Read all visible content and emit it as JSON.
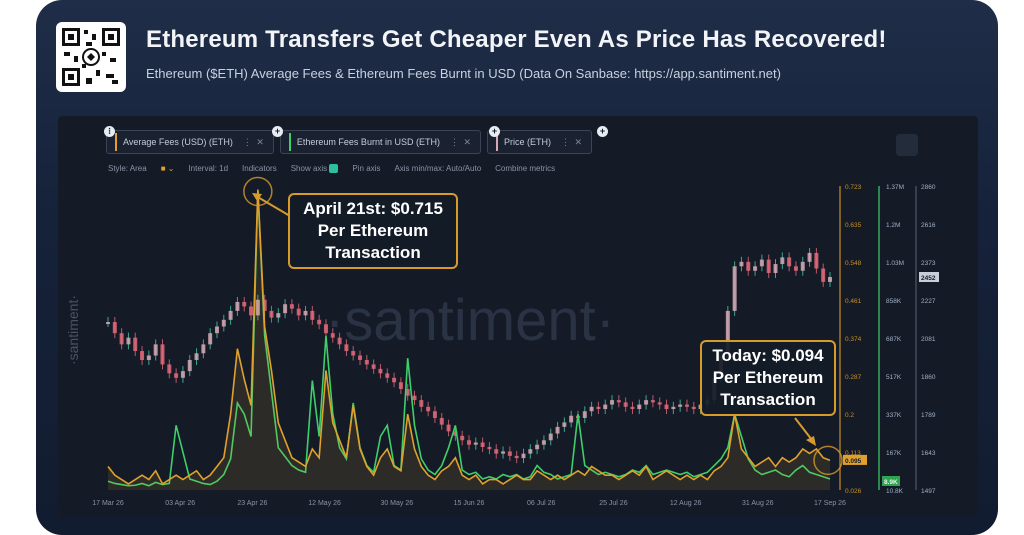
{
  "header": {
    "title": "Ethereum Transfers Get Cheaper Even As Price Has Recovered!",
    "subtitle": "Ethereum ($ETH) Average Fees & Ethereum Fees Burnt in USD (Data On Sanbase: https://app.santiment.net)"
  },
  "toolbar": {
    "metric1": "Average Fees (USD) (ETH)",
    "metric2": "Ethereum Fees Burnt in USD (ETH)",
    "metric3": "Price (ETH)",
    "style": "Style: Area",
    "interval": "Interval: 1d",
    "indicators": "Indicators",
    "show_axis": "Show axis",
    "pin_axis": "Pin axis",
    "axis_minmax": "Axis min/max: Auto/Auto",
    "combine": "Combine metrics"
  },
  "watermark": "·santiment·",
  "side_brand": "·santiment·",
  "callouts": {
    "peak": "April 21st: $0.715\nPer Ethereum\nTransaction",
    "today": "Today: $0.094\nPer Ethereum\nTransaction"
  },
  "colors": {
    "fees": "#e0a12c",
    "burnt": "#3ecf6a",
    "price": "#d7a9b4",
    "price_down": "#e36a7a",
    "price_up": "#49c9a8"
  },
  "chart_data": {
    "type": "line",
    "x_ticks": [
      "17 Mar 26",
      "03 Apr 26",
      "23 Apr 26",
      "12 May 26",
      "30 May 26",
      "15 Jun 26",
      "06 Jul 26",
      "25 Jul 26",
      "12 Aug 26",
      "31 Aug 26",
      "17 Sep 26"
    ],
    "axes": {
      "fees": {
        "ticks": [
          "0.723",
          "0.635",
          "0.548",
          "0.461",
          "0.374",
          "0.287",
          "0.2",
          "0.113",
          "0.026"
        ],
        "current": "0.095"
      },
      "burnt": {
        "ticks": [
          "1.37M",
          "1.2M",
          "1.03M",
          "858K",
          "687K",
          "517K",
          "337K",
          "167K",
          "10.8K"
        ],
        "current": "8.9K"
      },
      "price": {
        "ticks": [
          "2860",
          "2616",
          "2373",
          "2227",
          "2081",
          "1860",
          "1789",
          "1643",
          "1497"
        ],
        "current": "2452"
      }
    },
    "series": [
      {
        "name": "Average Fees (USD) (ETH)",
        "values": [
          0.08,
          0.06,
          0.05,
          0.04,
          0.05,
          0.06,
          0.05,
          0.07,
          0.04,
          0.05,
          0.06,
          0.05,
          0.06,
          0.07,
          0.05,
          0.06,
          0.08,
          0.1,
          0.2,
          0.35,
          0.28,
          0.22,
          0.715,
          0.4,
          0.3,
          0.18,
          0.14,
          0.1,
          0.09,
          0.08,
          0.12,
          0.1,
          0.3,
          0.18,
          0.14,
          0.1,
          0.22,
          0.12,
          0.08,
          0.06,
          0.1,
          0.12,
          0.08,
          0.07,
          0.2,
          0.12,
          0.08,
          0.06,
          0.05,
          0.07,
          0.08,
          0.1,
          0.06,
          0.05,
          0.06,
          0.04,
          0.05,
          0.05,
          0.04,
          0.05,
          0.06,
          0.05,
          0.05,
          0.07,
          0.06,
          0.05,
          0.06,
          0.05,
          0.06,
          0.07,
          0.06,
          0.08,
          0.07,
          0.06,
          0.06,
          0.05,
          0.06,
          0.07,
          0.06,
          0.08,
          0.05,
          0.06,
          0.07,
          0.06,
          0.05,
          0.06,
          0.05,
          0.06,
          0.05,
          0.07,
          0.08,
          0.1,
          0.2,
          0.12,
          0.1,
          0.08,
          0.09,
          0.1,
          0.08,
          0.1,
          0.09,
          0.1,
          0.12,
          0.11,
          0.12,
          0.1,
          0.094
        ]
      },
      {
        "name": "Ethereum Fees Burnt in USD (ETH)",
        "values": [
          50,
          40,
          35,
          30,
          32,
          40,
          30,
          45,
          35,
          40,
          300,
          180,
          60,
          50,
          40,
          35,
          50,
          80,
          150,
          400,
          350,
          250,
          1350,
          700,
          450,
          200,
          160,
          120,
          100,
          90,
          500,
          250,
          700,
          350,
          200,
          150,
          400,
          200,
          120,
          90,
          250,
          300,
          120,
          100,
          600,
          300,
          150,
          100,
          80,
          120,
          200,
          300,
          100,
          80,
          90,
          60,
          70,
          60,
          80,
          70,
          80,
          60,
          70,
          120,
          90,
          80,
          60,
          70,
          80,
          350,
          120,
          100,
          80,
          90,
          80,
          70,
          80,
          100,
          90,
          120,
          80,
          90,
          100,
          90,
          80,
          90,
          70,
          80,
          90,
          120,
          150,
          200,
          350,
          250,
          150,
          100,
          80,
          90,
          100,
          80,
          70,
          100,
          120,
          90,
          80,
          70,
          60
        ]
      },
      {
        "name": "Price (ETH)",
        "values": [
          2250,
          2200,
          2150,
          2180,
          2120,
          2080,
          2100,
          2150,
          2060,
          2020,
          2000,
          2030,
          2080,
          2110,
          2150,
          2200,
          2230,
          2260,
          2300,
          2340,
          2320,
          2280,
          2350,
          2300,
          2270,
          2290,
          2330,
          2310,
          2280,
          2300,
          2260,
          2240,
          2200,
          2180,
          2150,
          2120,
          2100,
          2080,
          2060,
          2040,
          2020,
          2000,
          1980,
          1950,
          1920,
          1900,
          1870,
          1850,
          1820,
          1790,
          1760,
          1740,
          1720,
          1700,
          1710,
          1690,
          1680,
          1660,
          1670,
          1650,
          1640,
          1660,
          1680,
          1700,
          1720,
          1750,
          1780,
          1800,
          1830,
          1820,
          1850,
          1870,
          1860,
          1880,
          1900,
          1890,
          1870,
          1860,
          1880,
          1900,
          1890,
          1880,
          1860,
          1870,
          1880,
          1870,
          1860,
          1880,
          1900,
          2000,
          2100,
          2300,
          2500,
          2520,
          2480,
          2500,
          2530,
          2470,
          2510,
          2540,
          2500,
          2480,
          2520,
          2560,
          2490,
          2430,
          2452
        ]
      }
    ]
  }
}
